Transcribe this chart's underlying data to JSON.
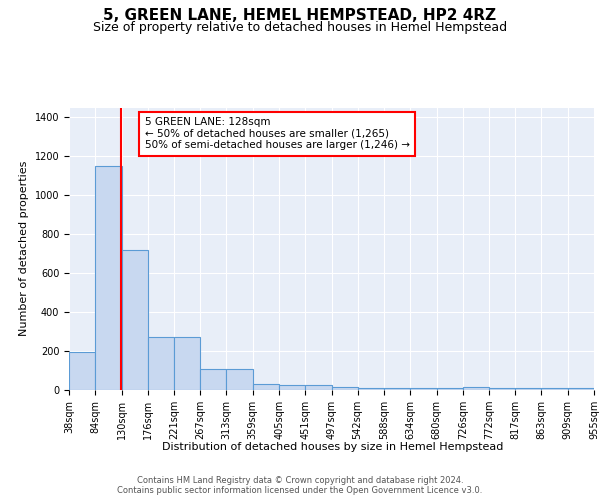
{
  "title": "5, GREEN LANE, HEMEL HEMPSTEAD, HP2 4RZ",
  "subtitle": "Size of property relative to detached houses in Hemel Hempstead",
  "xlabel": "Distribution of detached houses by size in Hemel Hempstead",
  "ylabel": "Number of detached properties",
  "bar_values": [
    195,
    1150,
    720,
    270,
    270,
    110,
    110,
    30,
    25,
    25,
    15,
    10,
    10,
    10,
    10,
    15,
    10,
    10,
    10,
    10
  ],
  "bin_edges": [
    38,
    84,
    130,
    176,
    221,
    267,
    313,
    359,
    405,
    451,
    497,
    542,
    588,
    634,
    680,
    726,
    772,
    817,
    863,
    909,
    955
  ],
  "bar_color": "#c8d8f0",
  "bar_edge_color": "#5b9bd5",
  "red_line_x": 128,
  "annotation_text": "5 GREEN LANE: 128sqm\n← 50% of detached houses are smaller (1,265)\n50% of semi-detached houses are larger (1,246) →",
  "annotation_box_color": "white",
  "annotation_box_edge_color": "red",
  "background_color": "#e8eef8",
  "footer_text": "Contains HM Land Registry data © Crown copyright and database right 2024.\nContains public sector information licensed under the Open Government Licence v3.0.",
  "ylim": [
    0,
    1450
  ],
  "yticks": [
    0,
    200,
    400,
    600,
    800,
    1000,
    1200,
    1400
  ],
  "title_fontsize": 11,
  "subtitle_fontsize": 9,
  "ylabel_fontsize": 8,
  "xlabel_fontsize": 8,
  "tick_fontsize": 7,
  "footer_fontsize": 6,
  "annotation_fontsize": 7.5
}
